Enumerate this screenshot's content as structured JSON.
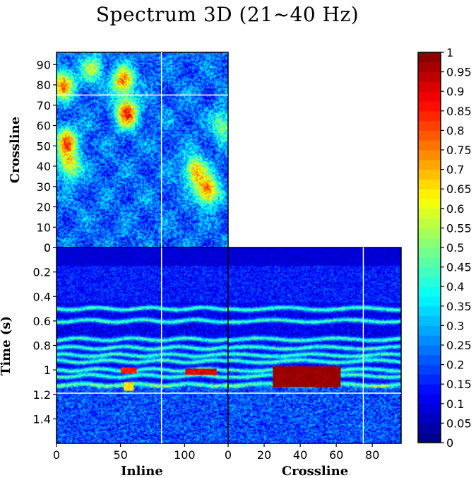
{
  "chart_data": {
    "type": "heatmap",
    "title": "Spectrum 3D (21~40 Hz)",
    "colormap": "jet",
    "value_range": [
      0,
      1
    ],
    "colorbar": {
      "ticks": [
        "1",
        "0.95",
        "0.9",
        "0.85",
        "0.8",
        "0.75",
        "0.7",
        "0.65",
        "0.6",
        "0.55",
        "0.5",
        "0.45",
        "0.4",
        "0.35",
        "0.3",
        "0.25",
        "0.2",
        "0.15",
        "0.1",
        "0.05",
        "0"
      ],
      "tick_values": [
        1,
        0.95,
        0.9,
        0.85,
        0.8,
        0.75,
        0.7,
        0.65,
        0.6,
        0.55,
        0.5,
        0.45,
        0.4,
        0.35,
        0.3,
        0.25,
        0.2,
        0.15,
        0.1,
        0.05,
        0
      ]
    },
    "panels": {
      "time_slice": {
        "x_axis": "Inline",
        "y_axis": "Crossline",
        "x_range": [
          0,
          134
        ],
        "y_range": [
          0,
          96
        ],
        "y_label": "Crossline",
        "y_ticks": [
          "90",
          "80",
          "70",
          "60",
          "50",
          "40",
          "30",
          "20",
          "10",
          "0"
        ],
        "y_tick_values": [
          90,
          80,
          70,
          60,
          50,
          40,
          30,
          20,
          10,
          0
        ]
      },
      "inline_section": {
        "x_axis": "Inline",
        "y_axis": "Time (s)",
        "x_range": [
          0,
          134
        ],
        "y_range": [
          0,
          1.6
        ],
        "x_label": "Inline",
        "y_label": "Time (s)",
        "x_ticks": [
          "0",
          "50",
          "100"
        ],
        "x_tick_values": [
          0,
          50,
          100
        ],
        "y_ticks": [
          "0",
          "0.2",
          "0.4",
          "0.6",
          "0.8",
          "1",
          "1.2",
          "1.4"
        ],
        "y_tick_values": [
          0,
          0.2,
          0.4,
          0.6,
          0.8,
          1.0,
          1.2,
          1.4
        ]
      },
      "crossline_section": {
        "x_axis": "Crossline",
        "y_axis": "Time (s)",
        "x_range": [
          0,
          96
        ],
        "y_range": [
          0,
          1.6
        ],
        "x_label": "Crossline",
        "x_ticks": [
          "0",
          "20",
          "40",
          "60",
          "80"
        ],
        "x_tick_values": [
          0,
          20,
          40,
          60,
          80
        ]
      }
    },
    "cursor": {
      "inline": 82,
      "crossline": 75,
      "time_s": 1.19
    },
    "features": {
      "reflector_bands_time_s": [
        0.5,
        0.6,
        0.75,
        0.82,
        0.88,
        0.93,
        1.0,
        1.05,
        1.12
      ],
      "strong_anomaly": {
        "section": "crossline",
        "crossline_range": [
          25,
          62
        ],
        "time_range_s": [
          0.97,
          1.14
        ],
        "level": 0.95
      },
      "inline_anomalies": [
        {
          "inline_range": [
            50,
            62
          ],
          "time_range_s": [
            0.98,
            1.03
          ],
          "level": 0.8
        },
        {
          "inline_range": [
            100,
            125
          ],
          "time_range_s": [
            0.99,
            1.04
          ],
          "level": 0.85
        },
        {
          "inline_range": [
            52,
            60
          ],
          "time_range_s": [
            1.1,
            1.17
          ],
          "level": 0.6
        }
      ],
      "map_hotspots": [
        {
          "inline": 55,
          "crossline": 66,
          "level": 0.8
        },
        {
          "inline": 52,
          "crossline": 82,
          "level": 0.7
        },
        {
          "inline": 8,
          "crossline": 52,
          "level": 0.7
        },
        {
          "inline": 10,
          "crossline": 40,
          "level": 0.6
        },
        {
          "inline": 108,
          "crossline": 38,
          "level": 0.65
        },
        {
          "inline": 118,
          "crossline": 28,
          "level": 0.75
        },
        {
          "inline": 5,
          "crossline": 80,
          "level": 0.7
        },
        {
          "inline": 28,
          "crossline": 88,
          "level": 0.5
        },
        {
          "inline": 130,
          "crossline": 60,
          "level": 0.5
        }
      ]
    }
  }
}
